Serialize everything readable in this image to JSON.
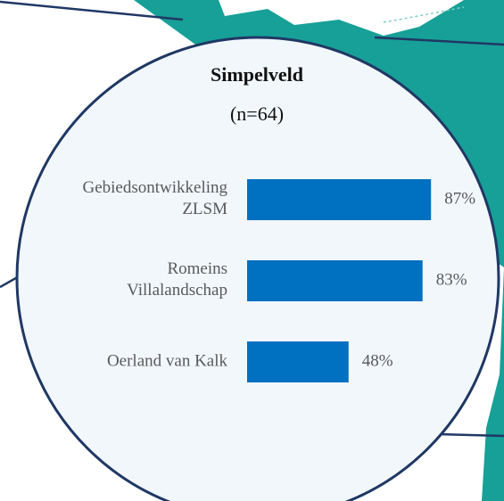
{
  "chart_data": {
    "type": "bar",
    "orientation": "horizontal",
    "title": "Simpelveld",
    "subtitle": "(n=64)",
    "categories": [
      "Gebiedsontwikkeling\nZLSM",
      "Romeins\nVillalandschap",
      "Oerland van Kalk"
    ],
    "values": [
      87,
      83,
      48
    ],
    "value_labels": [
      "87%",
      "83%",
      "48%"
    ],
    "color": "#0070c0"
  }
}
